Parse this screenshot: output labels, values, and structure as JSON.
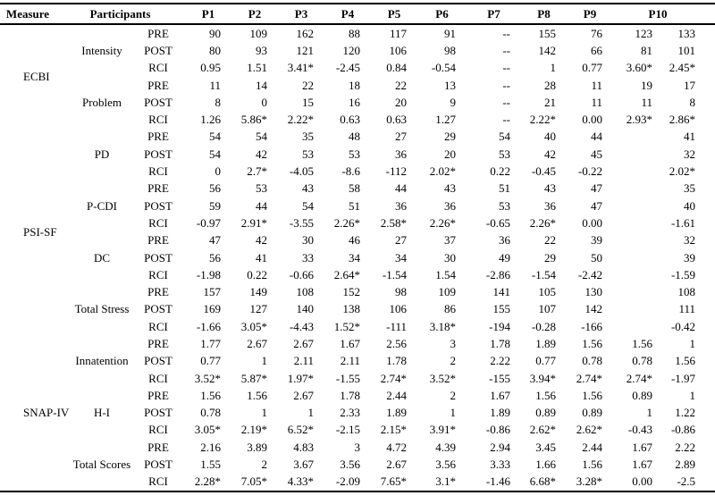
{
  "header": {
    "measure_label": "Measure",
    "participants_label": "Participants",
    "participant_columns": [
      {
        "label": "P1",
        "span": 1
      },
      {
        "label": "P2",
        "span": 1
      },
      {
        "label": "P3",
        "span": 1
      },
      {
        "label": "P4",
        "span": 1
      },
      {
        "label": "P5",
        "span": 1
      },
      {
        "label": "P6",
        "span": 1
      },
      {
        "label": "P7",
        "span": 1
      },
      {
        "label": "P8",
        "span": 1
      },
      {
        "label": "P9",
        "span": 1
      },
      {
        "label": "P10",
        "span": 2
      }
    ]
  },
  "phase_labels": [
    "PRE",
    "POST",
    "RCI"
  ],
  "groups": [
    {
      "measure": "ECBI",
      "subscales": [
        {
          "name": "Intensity",
          "phases": [
            {
              "label": "PRE",
              "values": [
                "90",
                "109",
                "162",
                "88",
                "117",
                "91",
                "--",
                "155",
                "76",
                "123",
                "133"
              ]
            },
            {
              "label": "POST",
              "values": [
                "80",
                "93",
                "121",
                "120",
                "106",
                "98",
                "--",
                "142",
                "66",
                "81",
                "101"
              ]
            },
            {
              "label": "RCI",
              "values": [
                "0.95",
                "1.51",
                "3.41*",
                "-2.45",
                "0.84",
                "-0.54",
                "--",
                "1",
                "0.77",
                "3.60*",
                "2.45*"
              ]
            }
          ]
        },
        {
          "name": "Problem",
          "phases": [
            {
              "label": "PRE",
              "values": [
                "11",
                "14",
                "22",
                "18",
                "22",
                "13",
                "--",
                "28",
                "11",
                "19",
                "17"
              ]
            },
            {
              "label": "POST",
              "values": [
                "8",
                "0",
                "15",
                "16",
                "20",
                "9",
                "--",
                "21",
                "11",
                "11",
                "8"
              ]
            },
            {
              "label": "RCI",
              "values": [
                "1.26",
                "5.86*",
                "2.22*",
                "0.63",
                "0.63",
                "1.27",
                "--",
                "2.22*",
                "0.00",
                "2.93*",
                "2.86*"
              ]
            }
          ]
        }
      ]
    },
    {
      "measure": "PSI-SF",
      "subscales": [
        {
          "name": "PD",
          "phases": [
            {
              "label": "PRE",
              "values": [
                "54",
                "54",
                "35",
                "48",
                "27",
                "29",
                "54",
                "40",
                "44",
                "",
                "41"
              ]
            },
            {
              "label": "POST",
              "values": [
                "54",
                "42",
                "53",
                "53",
                "36",
                "20",
                "53",
                "42",
                "45",
                "",
                "32"
              ]
            },
            {
              "label": "RCI",
              "values": [
                "0",
                "2.7*",
                "-4.05",
                "-8.6",
                "-112",
                "2.02*",
                "0.22",
                "-0.45",
                "-0.22",
                "",
                "2.02*"
              ]
            }
          ]
        },
        {
          "name": "P-CDI",
          "phases": [
            {
              "label": "PRE",
              "values": [
                "56",
                "53",
                "43",
                "58",
                "44",
                "43",
                "51",
                "43",
                "47",
                "",
                "35"
              ]
            },
            {
              "label": "POST",
              "values": [
                "59",
                "44",
                "54",
                "51",
                "36",
                "36",
                "53",
                "36",
                "47",
                "",
                "40"
              ]
            },
            {
              "label": "RCI",
              "values": [
                "-0.97",
                "2.91*",
                "-3.55",
                "2.26*",
                "2.58*",
                "2.26*",
                "-0.65",
                "2.26*",
                "0.00",
                "",
                "-1.61"
              ]
            }
          ]
        },
        {
          "name": "DC",
          "phases": [
            {
              "label": "PRE",
              "values": [
                "47",
                "42",
                "30",
                "46",
                "27",
                "37",
                "36",
                "22",
                "39",
                "",
                "32"
              ]
            },
            {
              "label": "POST",
              "values": [
                "56",
                "41",
                "33",
                "34",
                "34",
                "30",
                "49",
                "29",
                "50",
                "",
                "39"
              ]
            },
            {
              "label": "RCI",
              "values": [
                "-1.98",
                "0.22",
                "-0.66",
                "2.64*",
                "-1.54",
                "1.54",
                "-2.86",
                "-1.54",
                "-2.42",
                "",
                "-1.59"
              ]
            }
          ]
        },
        {
          "name": "Total Stress",
          "phases": [
            {
              "label": "PRE",
              "values": [
                "157",
                "149",
                "108",
                "152",
                "98",
                "109",
                "141",
                "105",
                "130",
                "",
                "108"
              ]
            },
            {
              "label": "POST",
              "values": [
                "169",
                "127",
                "140",
                "138",
                "106",
                "86",
                "155",
                "107",
                "142",
                "",
                "111"
              ]
            },
            {
              "label": "RCI",
              "values": [
                "-1.66",
                "3.05*",
                "-4.43",
                "1.52*",
                "-111",
                "3.18*",
                "-194",
                "-0.28",
                "-166",
                "",
                "-0.42"
              ]
            }
          ]
        }
      ]
    },
    {
      "measure": "SNAP-IV",
      "subscales": [
        {
          "name": "Innatention",
          "phases": [
            {
              "label": "PRE",
              "values": [
                "1.77",
                "2.67",
                "2.67",
                "1.67",
                "2.56",
                "3",
                "1.78",
                "1.89",
                "1.56",
                "1.56",
                "1"
              ]
            },
            {
              "label": "POST",
              "values": [
                "0.77",
                "1",
                "2.11",
                "2.11",
                "1.78",
                "2",
                "2.22",
                "0.77",
                "0.78",
                "0.78",
                "1.56"
              ]
            },
            {
              "label": "RCI",
              "values": [
                "3.52*",
                "5.87*",
                "1.97*",
                "-1.55",
                "2.74*",
                "3.52*",
                "-155",
                "3.94*",
                "2.74*",
                "2.74*",
                "-1.97"
              ]
            }
          ]
        },
        {
          "name": "H-I",
          "phases": [
            {
              "label": "PRE",
              "values": [
                "1.56",
                "1.56",
                "2.67",
                "1.78",
                "2.44",
                "2",
                "1.67",
                "1.56",
                "1.56",
                "0.89",
                "1"
              ]
            },
            {
              "label": "POST",
              "values": [
                "0.78",
                "1",
                "1",
                "2.33",
                "1.89",
                "1",
                "1.89",
                "0.89",
                "0.89",
                "1",
                "1.22"
              ]
            },
            {
              "label": "RCI",
              "values": [
                "3.05*",
                "2.19*",
                "6.52*",
                "-2.15",
                "2.15*",
                "3.91*",
                "-0.86",
                "2.62*",
                "2.62*",
                "-0.43",
                "-0.86"
              ]
            }
          ]
        },
        {
          "name": "Total Scores",
          "phases": [
            {
              "label": "PRE",
              "values": [
                "2.16",
                "3.89",
                "4.83",
                "3",
                "4.72",
                "4.39",
                "2.94",
                "3.45",
                "2.44",
                "1.67",
                "2.22"
              ]
            },
            {
              "label": "POST",
              "values": [
                "1.55",
                "2",
                "3.67",
                "3.56",
                "2.67",
                "3.56",
                "3.33",
                "1.66",
                "1.56",
                "1.67",
                "2.89"
              ]
            },
            {
              "label": "RCI",
              "values": [
                "2.28*",
                "7.05*",
                "4.33*",
                "-2.09",
                "7.65*",
                "3.1*",
                "-1.46",
                "6.68*",
                "3.28*",
                "0.00",
                "-2.5"
              ]
            }
          ]
        }
      ]
    }
  ]
}
